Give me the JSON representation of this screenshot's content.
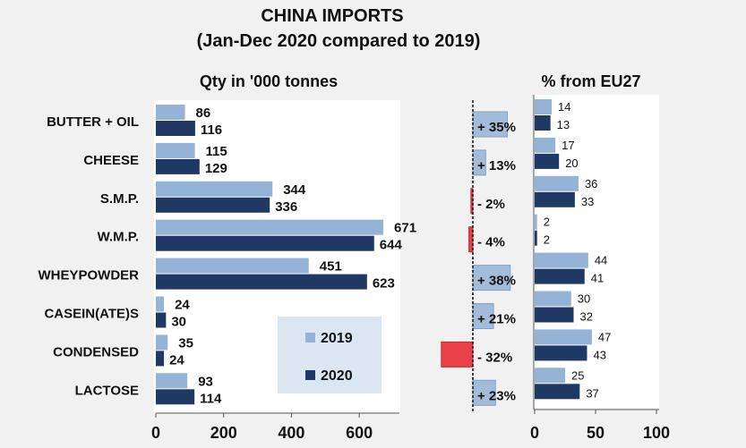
{
  "chart_data": {
    "type": "bar",
    "title": "CHINA IMPORTS",
    "subtitle": "(Jan-Dec 2020 compared  to 2019)",
    "panels": {
      "quantity": {
        "label": "Qty in '000 tonnes",
        "xlim": [
          0,
          700
        ],
        "ticks": [
          0,
          200,
          400,
          600
        ]
      },
      "change": {
        "xlim": [
          -40,
          40
        ]
      },
      "eu_share": {
        "label": "% from EU27",
        "xlim": [
          0,
          100
        ],
        "ticks": [
          0,
          50,
          100
        ]
      }
    },
    "categories": [
      "BUTTER + OIL",
      "CHEESE",
      "S.M.P.",
      "W.M.P.",
      "WHEYPOWDER",
      "CASEIN(ATE)S",
      "CONDENSED",
      "LACTOSE"
    ],
    "series": [
      {
        "name": "2019",
        "color": "#95b3d7",
        "values": [
          86,
          115,
          344,
          671,
          451,
          24,
          35,
          93
        ],
        "eu_pct": [
          14,
          17,
          36,
          2,
          44,
          30,
          47,
          25
        ]
      },
      {
        "name": "2020",
        "color": "#1f3864",
        "values": [
          116,
          129,
          336,
          644,
          623,
          30,
          24,
          114
        ],
        "eu_pct": [
          13,
          20,
          33,
          2,
          41,
          32,
          43,
          37
        ]
      }
    ],
    "change_pct": [
      35,
      13,
      -2,
      -4,
      38,
      21,
      -32,
      23
    ],
    "change_labels": [
      "+ 35%",
      "+ 13%",
      "- 2%",
      "- 4%",
      "+ 38%",
      "+ 21%",
      "- 32%",
      "+ 23%"
    ],
    "legend": {
      "placement": "inside-bottom-right of quantity panel"
    },
    "colors": {
      "positive": "#95b3d7",
      "negative": "#e8202a",
      "panel_bg": "#ffffff",
      "page_bg": "#f1f1f1"
    }
  }
}
